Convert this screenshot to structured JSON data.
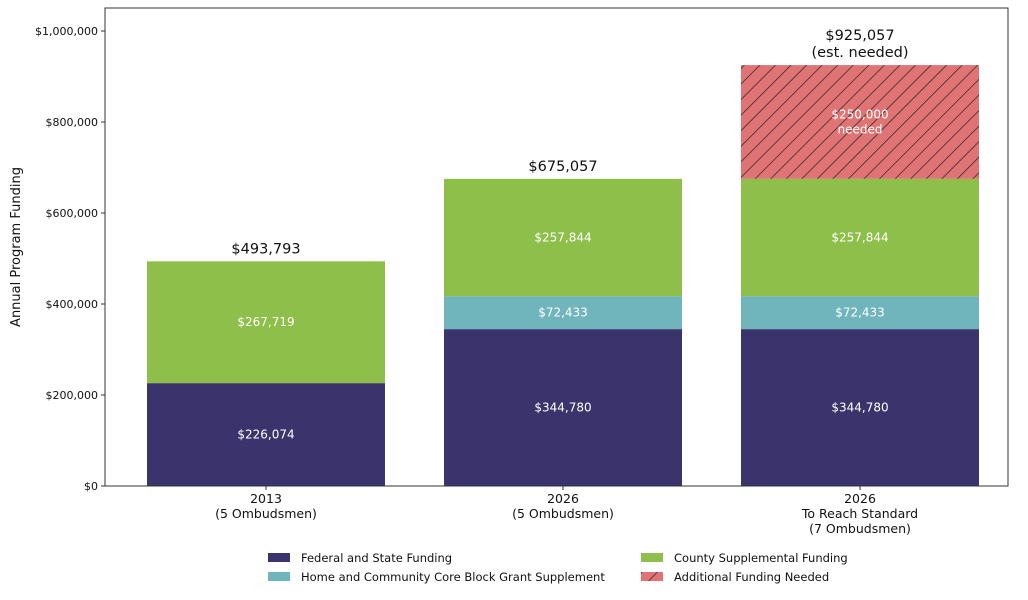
{
  "chart_data": {
    "type": "bar",
    "stacked": true,
    "title": "",
    "xlabel": "",
    "ylabel": "Annual Program Funding",
    "ylim": [
      0,
      1050000
    ],
    "yticks": [
      0,
      200000,
      400000,
      600000,
      800000,
      1000000
    ],
    "ytick_labels": [
      "$0",
      "$200,000",
      "$400,000",
      "$600,000",
      "$800,000",
      "$1,000,000"
    ],
    "categories": [
      [
        "2013",
        "(5 Ombudsmen)"
      ],
      [
        "2026",
        "(5 Ombudsmen)"
      ],
      [
        "2026",
        "To Reach Standard",
        "(7 Ombudsmen)"
      ]
    ],
    "series": [
      {
        "name": "Federal and State Funding",
        "color": "#3b346c",
        "values": [
          226074,
          344780,
          344780
        ],
        "labels": [
          "$226,074",
          "$344,780",
          "$344,780"
        ]
      },
      {
        "name": "Home and Community Core Block Grant Supplement",
        "color": "#6fb5bb",
        "values": [
          0,
          72433,
          72433
        ],
        "labels": [
          "",
          "$72,433",
          "$72,433"
        ]
      },
      {
        "name": "County Supplemental Funding",
        "color": "#8fbf4b",
        "values": [
          267719,
          257844,
          257844
        ],
        "labels": [
          "$267,719",
          "$257,844",
          "$257,844"
        ]
      },
      {
        "name": "Additional Funding Needed",
        "color": "#e07474",
        "hatch": "diagonal",
        "values": [
          0,
          0,
          250000
        ],
        "labels": [
          "",
          "",
          "$250,000\nneeded"
        ]
      }
    ],
    "totals": [
      [
        "$493,793"
      ],
      [
        "$675,057"
      ],
      [
        "$925,057",
        "(est. needed)"
      ]
    ],
    "grid": false,
    "legend": {
      "placement": "bottom",
      "columns": 2
    }
  }
}
